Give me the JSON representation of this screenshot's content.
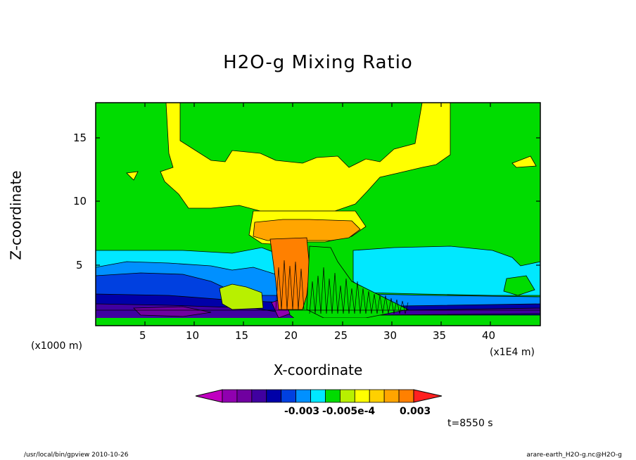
{
  "chart_data": {
    "type": "contour",
    "title": "H2O-g Mixing Ratio",
    "xlabel": "X-coordinate",
    "ylabel": "Z-coordinate",
    "x_unit_note": "(x1000 m)",
    "x_scale_note": "(x1E4 m)",
    "x_ticks": [
      "5",
      "10",
      "15",
      "20",
      "25",
      "30",
      "35",
      "40"
    ],
    "y_ticks": [
      "5",
      "10",
      "15"
    ],
    "xlim": [
      0,
      45
    ],
    "ylim": [
      0.5,
      17.8
    ],
    "colorbar_labels": [
      "-0.003",
      "-0.005e-4",
      "0.003"
    ],
    "colorbar_colors": [
      "#c000c0",
      "#9000b0",
      "#7000a0",
      "#4000a0",
      "#0000a8",
      "#0040e0",
      "#0090ff",
      "#00e8ff",
      "#00dc00",
      "#b8f000",
      "#ffff00",
      "#ffd000",
      "#ffa500",
      "#ff8000",
      "#ff2020"
    ],
    "time_label": "t=8550 s"
  },
  "footer": {
    "left": "/usr/local/bin/gpview  2010-10-26",
    "right": "arare-earth_H2O-g.nc@H2O-g"
  }
}
